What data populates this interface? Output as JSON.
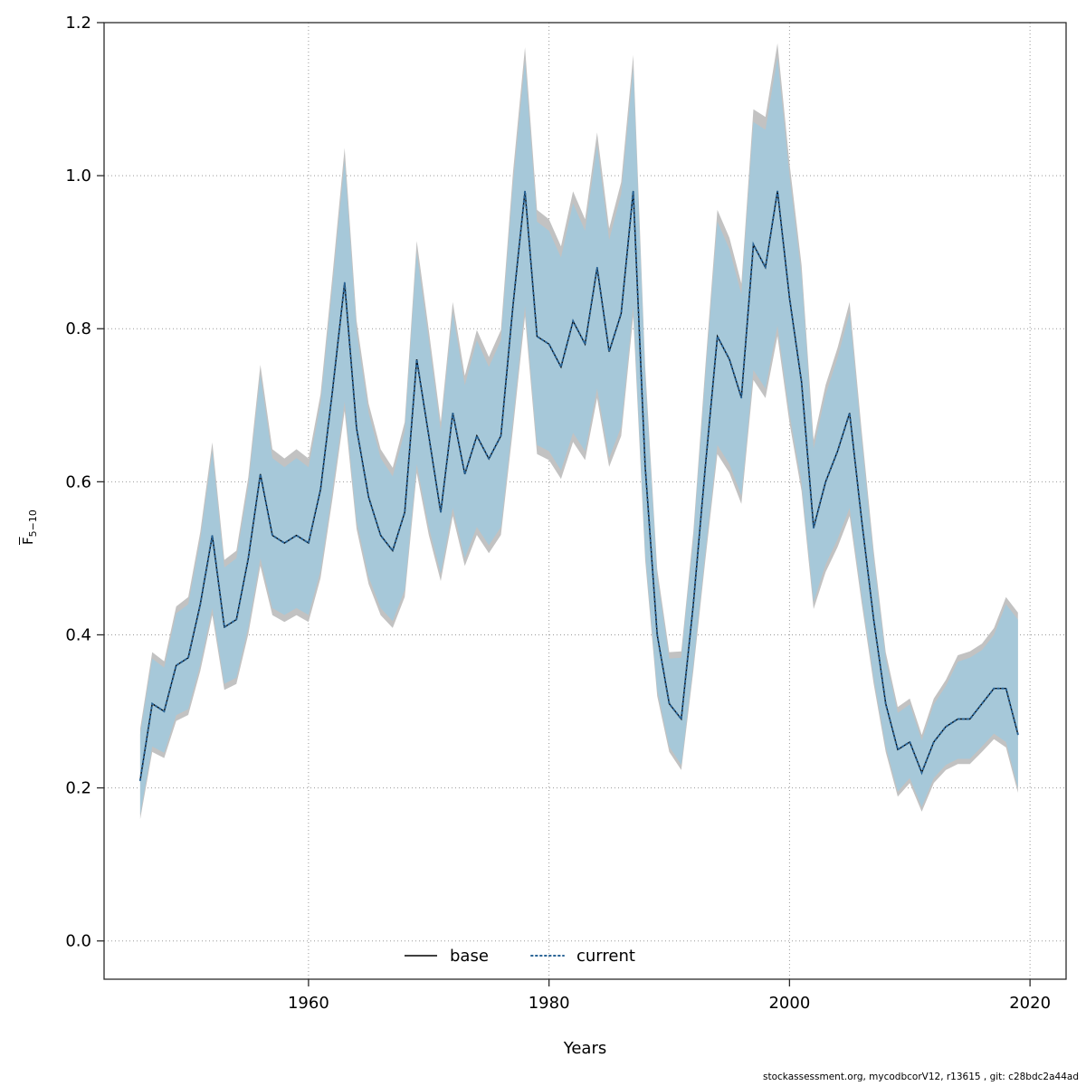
{
  "footer": {
    "text": "stockassessment.org, mycodbcorV12, r13615 , git: c28bdc2a44ad"
  },
  "chart_data": {
    "type": "line",
    "title": "",
    "xlabel": "Years",
    "ylabel_main": "F",
    "ylabel_sub": "5−10",
    "xlim": [
      1943,
      2023
    ],
    "ylim": [
      -0.05,
      1.2
    ],
    "xticks": [
      1960,
      1980,
      2000,
      2020
    ],
    "xtick_labels": [
      "1960",
      "1980",
      "2000",
      "2020"
    ],
    "yticks": [
      0.0,
      0.2,
      0.4,
      0.6,
      0.8,
      1.0,
      1.2
    ],
    "ytick_labels": [
      "0.0",
      "0.2",
      "0.4",
      "0.6",
      "0.8",
      "1.0",
      "1.2"
    ],
    "grid": true,
    "legend": [
      "base",
      "current"
    ],
    "legend_position": "bottom-center-inside",
    "x": [
      1946,
      1947,
      1948,
      1949,
      1950,
      1951,
      1952,
      1953,
      1954,
      1955,
      1956,
      1957,
      1958,
      1959,
      1960,
      1961,
      1962,
      1963,
      1964,
      1965,
      1966,
      1967,
      1968,
      1969,
      1970,
      1971,
      1972,
      1973,
      1974,
      1975,
      1976,
      1977,
      1978,
      1979,
      1980,
      1981,
      1982,
      1983,
      1984,
      1985,
      1986,
      1987,
      1988,
      1989,
      1990,
      1991,
      1992,
      1993,
      1994,
      1995,
      1996,
      1997,
      1998,
      1999,
      2000,
      2001,
      2002,
      2003,
      2004,
      2005,
      2006,
      2007,
      2008,
      2009,
      2010,
      2011,
      2012,
      2013,
      2014,
      2015,
      2016,
      2017,
      2018,
      2019
    ],
    "series": [
      {
        "name": "base",
        "style": "solid",
        "color": "#000000",
        "values": [
          0.21,
          0.31,
          0.3,
          0.36,
          0.37,
          0.44,
          0.53,
          0.41,
          0.42,
          0.5,
          0.61,
          0.53,
          0.52,
          0.53,
          0.52,
          0.59,
          0.72,
          0.86,
          0.67,
          0.58,
          0.53,
          0.51,
          0.56,
          0.76,
          0.66,
          0.56,
          0.69,
          0.61,
          0.66,
          0.63,
          0.66,
          0.83,
          0.98,
          0.79,
          0.78,
          0.75,
          0.81,
          0.78,
          0.88,
          0.77,
          0.82,
          0.98,
          0.62,
          0.4,
          0.31,
          0.29,
          0.44,
          0.62,
          0.79,
          0.76,
          0.71,
          0.91,
          0.88,
          0.98,
          0.84,
          0.73,
          0.54,
          0.6,
          0.64,
          0.69,
          0.55,
          0.42,
          0.31,
          0.25,
          0.26,
          0.22,
          0.26,
          0.28,
          0.29,
          0.29,
          0.31,
          0.33,
          0.33,
          0.27
        ]
      },
      {
        "name": "current",
        "style": "dotted",
        "color": "#2a6496",
        "values": [
          0.21,
          0.31,
          0.3,
          0.36,
          0.37,
          0.44,
          0.53,
          0.41,
          0.42,
          0.5,
          0.61,
          0.53,
          0.52,
          0.53,
          0.52,
          0.59,
          0.72,
          0.86,
          0.67,
          0.58,
          0.53,
          0.51,
          0.56,
          0.76,
          0.66,
          0.56,
          0.69,
          0.61,
          0.66,
          0.63,
          0.66,
          0.83,
          0.98,
          0.79,
          0.78,
          0.75,
          0.81,
          0.78,
          0.88,
          0.77,
          0.82,
          0.98,
          0.62,
          0.4,
          0.31,
          0.29,
          0.44,
          0.62,
          0.79,
          0.76,
          0.71,
          0.91,
          0.88,
          0.98,
          0.84,
          0.73,
          0.54,
          0.6,
          0.64,
          0.69,
          0.55,
          0.42,
          0.31,
          0.25,
          0.26,
          0.22,
          0.26,
          0.28,
          0.29,
          0.29,
          0.31,
          0.33,
          0.33,
          0.27
        ]
      }
    ],
    "band": {
      "name": "confidence-interval",
      "color": "#a4c8da",
      "base_color": "#c2c2c2",
      "lower": [
        0.165,
        0.254,
        0.246,
        0.295,
        0.303,
        0.361,
        0.435,
        0.336,
        0.344,
        0.41,
        0.5,
        0.435,
        0.426,
        0.435,
        0.426,
        0.484,
        0.59,
        0.705,
        0.549,
        0.476,
        0.435,
        0.418,
        0.459,
        0.623,
        0.541,
        0.48,
        0.566,
        0.5,
        0.541,
        0.517,
        0.541,
        0.681,
        0.83,
        0.648,
        0.64,
        0.615,
        0.664,
        0.64,
        0.722,
        0.631,
        0.672,
        0.83,
        0.508,
        0.328,
        0.254,
        0.23,
        0.361,
        0.508,
        0.648,
        0.623,
        0.582,
        0.746,
        0.722,
        0.804,
        0.689,
        0.599,
        0.443,
        0.492,
        0.525,
        0.566,
        0.451,
        0.344,
        0.254,
        0.195,
        0.213,
        0.175,
        0.213,
        0.23,
        0.238,
        0.238,
        0.254,
        0.271,
        0.26,
        0.2
      ],
      "upper": [
        0.27,
        0.369,
        0.357,
        0.428,
        0.44,
        0.524,
        0.64,
        0.488,
        0.5,
        0.595,
        0.74,
        0.631,
        0.619,
        0.631,
        0.619,
        0.702,
        0.857,
        1.02,
        0.797,
        0.69,
        0.631,
        0.607,
        0.666,
        0.9,
        0.785,
        0.666,
        0.821,
        0.726,
        0.785,
        0.75,
        0.785,
        0.988,
        1.15,
        0.94,
        0.928,
        0.893,
        0.964,
        0.928,
        1.04,
        0.916,
        0.976,
        1.14,
        0.738,
        0.476,
        0.369,
        0.37,
        0.524,
        0.738,
        0.94,
        0.904,
        0.845,
        1.07,
        1.06,
        1.155,
        1.0,
        0.869,
        0.643,
        0.714,
        0.762,
        0.821,
        0.655,
        0.5,
        0.369,
        0.298,
        0.309,
        0.262,
        0.309,
        0.333,
        0.365,
        0.37,
        0.38,
        0.4,
        0.44,
        0.42
      ]
    }
  }
}
